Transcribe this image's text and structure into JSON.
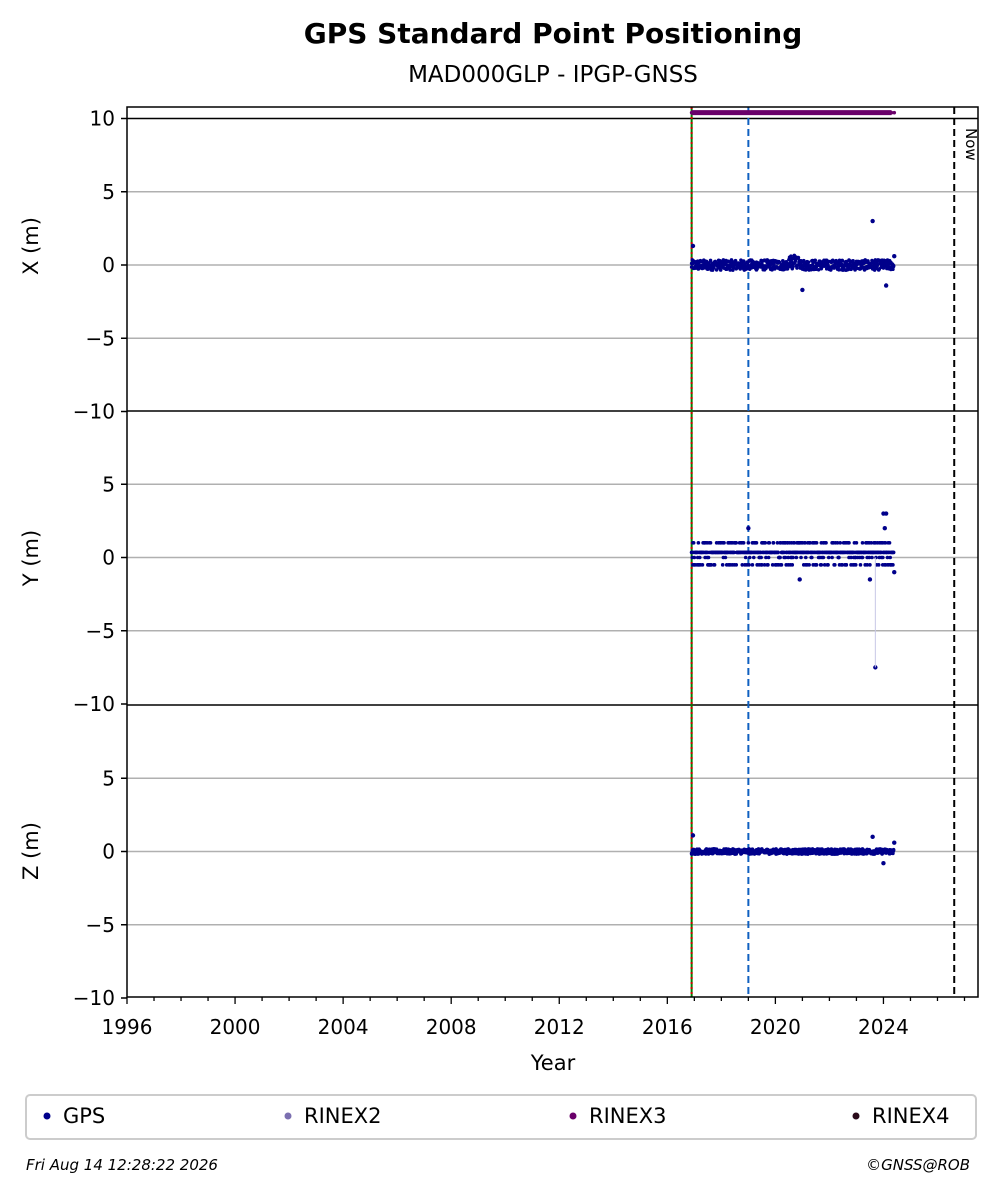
{
  "chart_data": {
    "type": "scatter",
    "title": "GPS Standard Point Positioning",
    "subtitle": "MAD000GLP - IPGP-GNSS",
    "xlabel": "Year",
    "xlim": [
      1996,
      2027.5
    ],
    "x_ticks": [
      "1996",
      "2000",
      "2004",
      "2008",
      "2012",
      "2016",
      "2020",
      "2024"
    ],
    "panels": [
      {
        "ylabel": "X (m)",
        "ylim": [
          -10,
          10
        ],
        "y_ticks": [
          "10",
          "5",
          "0",
          "−5",
          "−10"
        ]
      },
      {
        "ylabel": "Y (m)",
        "ylim": [
          -10,
          10
        ],
        "y_ticks": [
          "5",
          "0",
          "−5",
          "−10"
        ]
      },
      {
        "ylabel": "Z (m)",
        "ylim": [
          -10,
          10
        ],
        "y_ticks": [
          "5",
          "0",
          "−5",
          "−10"
        ]
      }
    ],
    "vertical_lines": [
      {
        "x": 2016.9,
        "color": "#008000",
        "style": "solid"
      },
      {
        "x": 2016.9,
        "color": "#cc0000",
        "style": "dotted"
      },
      {
        "x": 2019.0,
        "color": "#1060c0",
        "style": "dashed"
      },
      {
        "x": 2026.62,
        "color": "#000000",
        "style": "dashed",
        "label": "Now"
      }
    ],
    "rinex3_band": {
      "x_start": 2016.9,
      "x_end": 2024.3,
      "x_last": 2024.4,
      "y": 10.4
    },
    "series": [
      {
        "name": "GPS",
        "color": "#00008b",
        "x_range": [
          2016.9,
          2024.4
        ],
        "x_outliers": [
          {
            "x": 2023.6,
            "y": 3.0
          },
          {
            "x": 2016.95,
            "y": 1.3
          },
          {
            "x": 2021.0,
            "y": -1.7
          },
          {
            "x": 2024.1,
            "y": -1.4
          },
          {
            "x": 2024.4,
            "y": 0.6
          }
        ],
        "y_outliers": [
          {
            "x": 2023.7,
            "y": -7.5
          },
          {
            "x": 2024.0,
            "y": 3.0
          },
          {
            "x": 2024.1,
            "y": 3.0
          },
          {
            "x": 2024.05,
            "y": 2.0
          },
          {
            "x": 2019.0,
            "y": 2.0
          },
          {
            "x": 2023.5,
            "y": -1.5
          },
          {
            "x": 2024.4,
            "y": -1.0
          },
          {
            "x": 2020.9,
            "y": -1.5
          }
        ],
        "z_outliers": [
          {
            "x": 2016.95,
            "y": 1.1
          },
          {
            "x": 2023.6,
            "y": 1.0
          },
          {
            "x": 2024.4,
            "y": 0.6
          },
          {
            "x": 2024.0,
            "y": -0.8
          }
        ]
      },
      {
        "name": "RINEX2",
        "color": "#7b6fb0"
      },
      {
        "name": "RINEX3",
        "color": "#6a006a"
      },
      {
        "name": "RINEX4",
        "color": "#2a0a1a"
      }
    ],
    "legend_position": "bottom"
  },
  "footer": {
    "timestamp": "Fri Aug 14 12:28:22 2026",
    "copyright": "©GNSS@ROB"
  }
}
